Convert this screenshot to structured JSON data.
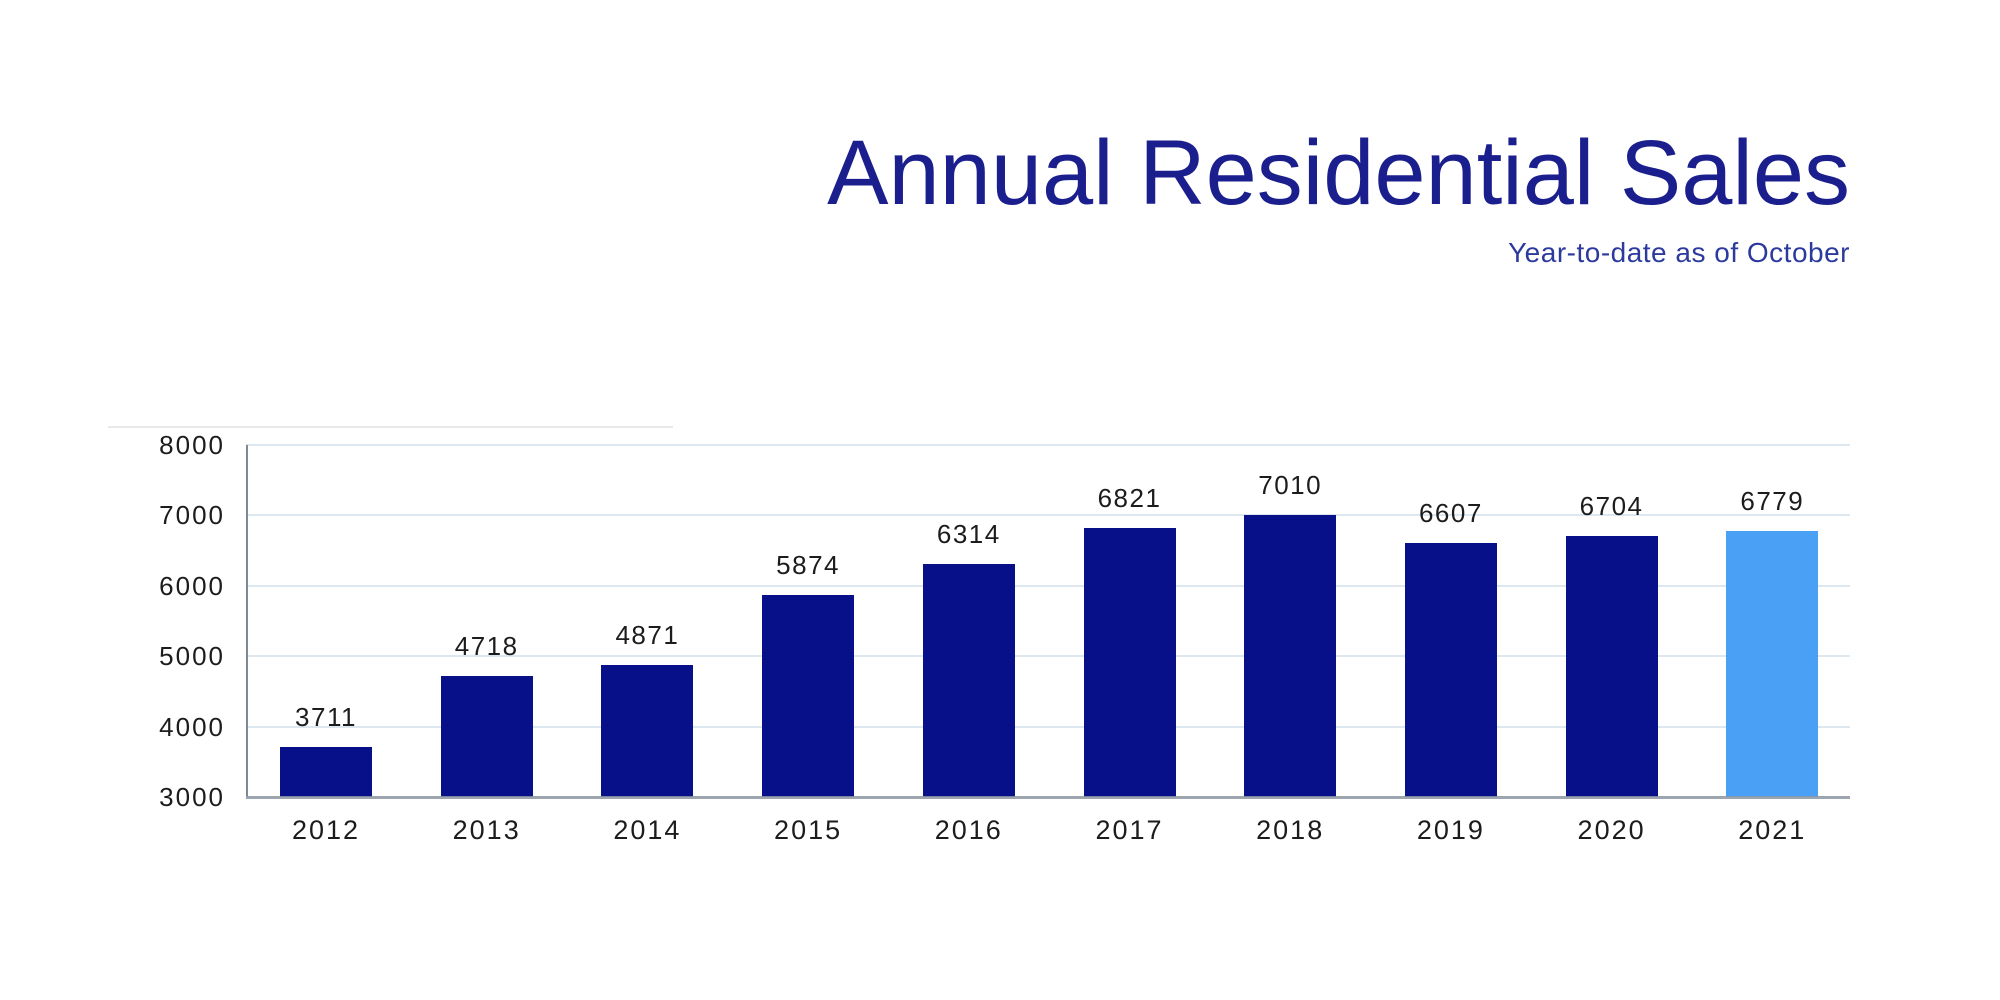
{
  "header": {
    "title": "Annual Residential Sales",
    "subtitle": "Year-to-date as of October",
    "title_color": "#1b1f8e",
    "subtitle_color": "#2c3a9e"
  },
  "chart_data": {
    "type": "bar",
    "title": "Annual Residential Sales",
    "subtitle": "Year-to-date as of October",
    "categories": [
      "2012",
      "2013",
      "2014",
      "2015",
      "2016",
      "2017",
      "2018",
      "2019",
      "2020",
      "2021"
    ],
    "values": [
      3711,
      4718,
      4871,
      5874,
      6314,
      6821,
      7010,
      6607,
      6704,
      6779
    ],
    "value_labels_shown": true,
    "xlabel": "",
    "ylabel": "",
    "ylim": [
      3000,
      8000
    ],
    "ytick_interval": 1000,
    "yticks": [
      "3000",
      "4000",
      "5000",
      "6000",
      "7000",
      "8000"
    ],
    "grid": "horizontal",
    "legend": "none",
    "highlight_index": 9,
    "colors": {
      "bar_default": "#071089",
      "bar_highlight": "#4aa0f5",
      "gridline": "#dde7f0",
      "y_axis": "#7d8a93",
      "x_axis": "rgba(140,150,162,0.85)",
      "tick_text": "#1c1c1c"
    }
  }
}
